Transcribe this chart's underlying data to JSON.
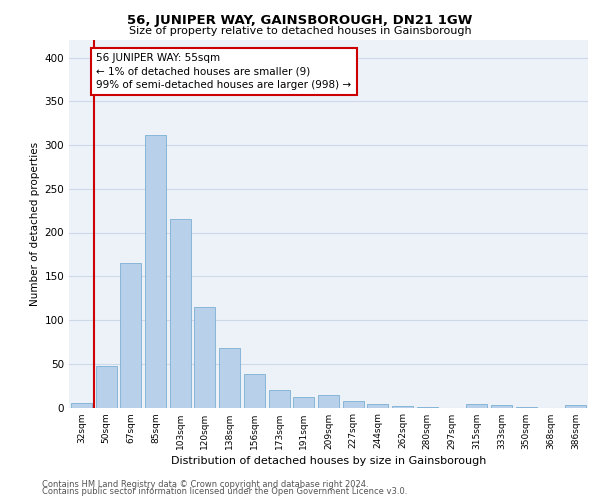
{
  "title": "56, JUNIPER WAY, GAINSBOROUGH, DN21 1GW",
  "subtitle": "Size of property relative to detached houses in Gainsborough",
  "xlabel": "Distribution of detached houses by size in Gainsborough",
  "ylabel": "Number of detached properties",
  "footer_line1": "Contains HM Land Registry data © Crown copyright and database right 2024.",
  "footer_line2": "Contains public sector information licensed under the Open Government Licence v3.0.",
  "categories": [
    "32sqm",
    "50sqm",
    "67sqm",
    "85sqm",
    "103sqm",
    "120sqm",
    "138sqm",
    "156sqm",
    "173sqm",
    "191sqm",
    "209sqm",
    "227sqm",
    "244sqm",
    "262sqm",
    "280sqm",
    "297sqm",
    "315sqm",
    "333sqm",
    "350sqm",
    "368sqm",
    "386sqm"
  ],
  "values": [
    5,
    47,
    165,
    312,
    215,
    115,
    68,
    38,
    20,
    12,
    14,
    8,
    4,
    2,
    1,
    0,
    4,
    3,
    1,
    0,
    3
  ],
  "bar_color": "#b8d0ea",
  "bar_edge_color": "#7aafd4",
  "grid_color": "#cdd8e8",
  "background_color": "#edf2f9",
  "red_line_x": 0.5,
  "annotation_text": "56 JUNIPER WAY: 55sqm\n← 1% of detached houses are smaller (9)\n99% of semi-detached houses are larger (998) →",
  "annotation_box_color": "#ffffff",
  "annotation_box_edge": "#cc0000",
  "red_line_color": "#cc0000",
  "ylim": [
    0,
    420
  ],
  "yticks": [
    0,
    50,
    100,
    150,
    200,
    250,
    300,
    350,
    400
  ]
}
